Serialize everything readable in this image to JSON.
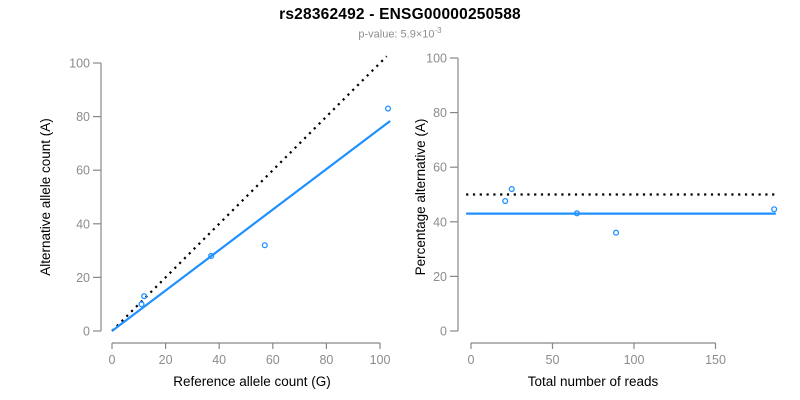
{
  "figure": {
    "title": "rs28362492 - ENSG00000250588",
    "subtitle_prefix": "p-value: 5.9×10",
    "subtitle_exponent": "-3"
  },
  "colors": {
    "accent_blue": "#1E90FF",
    "dotted_black": "#000000",
    "axis_gray": "#888888",
    "tick_label_gray": "#8c8c8c",
    "axis_title_black": "#000000",
    "subtitle_gray": "#8e8e8e"
  },
  "chart_data": [
    {
      "type": "scatter",
      "panel": "left",
      "xlabel": "Reference allele count (G)",
      "ylabel": "Alternative allele count (A)",
      "xlim": [
        0,
        105
      ],
      "ylim": [
        0,
        105
      ],
      "xticks": [
        0,
        20,
        40,
        60,
        80,
        100
      ],
      "yticks": [
        0,
        20,
        40,
        60,
        80,
        100
      ],
      "grid": false,
      "legend": null,
      "point_color": "#1E90FF",
      "points": [
        [
          11,
          10
        ],
        [
          12,
          13
        ],
        [
          37,
          28
        ],
        [
          57,
          32
        ],
        [
          103,
          83
        ]
      ],
      "lines": [
        {
          "kind": "abline",
          "name": "identity-line",
          "slope": 1,
          "intercept": 0,
          "style": "dotted",
          "color": "#000000",
          "x_range": [
            0,
            102.5
          ]
        },
        {
          "kind": "abline",
          "name": "regression-line",
          "slope": 0.755,
          "intercept": 0,
          "style": "solid",
          "color": "#1E90FF",
          "x_range": [
            0,
            103.8
          ]
        }
      ]
    },
    {
      "type": "scatter",
      "panel": "right",
      "xlabel": "Total number of reads",
      "ylabel": "Percentage alternative (A)",
      "xlim": [
        0,
        190
      ],
      "ylim": [
        0,
        100
      ],
      "xticks": [
        0,
        50,
        100,
        150
      ],
      "yticks": [
        0,
        20,
        40,
        60,
        80,
        100
      ],
      "grid": false,
      "legend": null,
      "point_color": "#1E90FF",
      "points": [
        [
          21,
          47.6
        ],
        [
          25,
          52
        ],
        [
          65,
          43.1
        ],
        [
          89,
          36
        ],
        [
          186,
          44.6
        ]
      ],
      "lines": [
        {
          "kind": "hline",
          "name": "fifty-percent-line",
          "y": 50,
          "style": "dotted",
          "color": "#000000",
          "x_range": [
            -3,
            187
          ]
        },
        {
          "kind": "hline",
          "name": "mean-percentage-line",
          "y": 43,
          "style": "solid",
          "color": "#1E90FF",
          "x_range": [
            -3,
            187
          ]
        }
      ]
    }
  ]
}
